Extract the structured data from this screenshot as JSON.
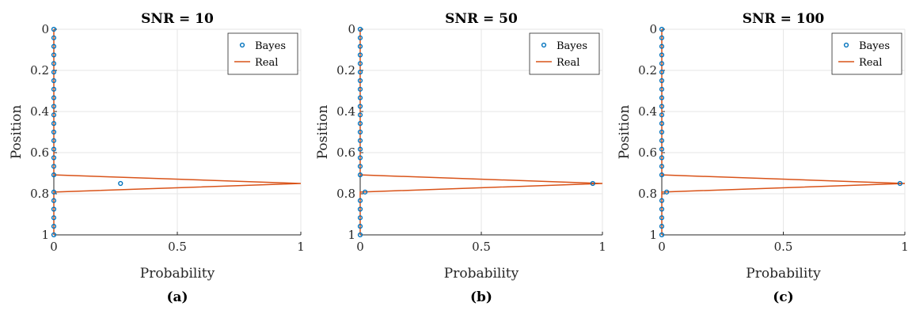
{
  "chart_data": [
    {
      "type": "line",
      "title": "SNR = 10",
      "xlabel": "Probability",
      "ylabel": "Position",
      "caption": "(a)",
      "xlim": [
        0,
        1
      ],
      "ylim": [
        0,
        1
      ],
      "y_reversed": true,
      "xticks": [
        0,
        0.5,
        1
      ],
      "xtick_labels": [
        "0",
        "0.5",
        "1"
      ],
      "yticks": [
        0,
        0.2,
        0.4,
        0.6,
        0.8,
        1
      ],
      "ytick_labels": [
        "0",
        "0.2",
        "0.4",
        "0.6",
        "0.8",
        "1"
      ],
      "grid": true,
      "legend": "top-right",
      "position_grid": [
        0,
        0.0417,
        0.0833,
        0.125,
        0.1667,
        0.2083,
        0.25,
        0.2917,
        0.3333,
        0.375,
        0.4167,
        0.4583,
        0.5,
        0.5417,
        0.5833,
        0.625,
        0.6667,
        0.7083,
        0.75,
        0.7917,
        0.8333,
        0.875,
        0.9167,
        0.9583,
        1
      ],
      "series": [
        {
          "name": "Bayes",
          "style": "markers",
          "color": "#0072BD",
          "values": [
            0,
            0,
            0,
            0,
            0,
            0,
            0,
            0,
            0,
            0,
            0,
            0,
            0,
            0,
            0,
            0,
            0,
            0,
            0.27,
            0,
            0,
            0,
            0,
            0,
            0
          ]
        },
        {
          "name": "Real",
          "style": "line",
          "color": "#D95319",
          "values": [
            0,
            0,
            0,
            0,
            0,
            0,
            0,
            0,
            0,
            0,
            0,
            0,
            0,
            0,
            0,
            0,
            0,
            0,
            1,
            0,
            0,
            0,
            0,
            0,
            0
          ]
        }
      ]
    },
    {
      "type": "line",
      "title": "SNR = 50",
      "xlabel": "Probability",
      "ylabel": "Position",
      "caption": "(b)",
      "xlim": [
        0,
        1
      ],
      "ylim": [
        0,
        1
      ],
      "y_reversed": true,
      "xticks": [
        0,
        0.5,
        1
      ],
      "xtick_labels": [
        "0",
        "0.5",
        "1"
      ],
      "yticks": [
        0,
        0.2,
        0.4,
        0.6,
        0.8,
        1
      ],
      "ytick_labels": [
        "0",
        "0.2",
        "0.4",
        "0.6",
        "0.8",
        "1"
      ],
      "grid": true,
      "legend": "top-right",
      "position_grid": [
        0,
        0.0417,
        0.0833,
        0.125,
        0.1667,
        0.2083,
        0.25,
        0.2917,
        0.3333,
        0.375,
        0.4167,
        0.4583,
        0.5,
        0.5417,
        0.5833,
        0.625,
        0.6667,
        0.7083,
        0.75,
        0.7917,
        0.8333,
        0.875,
        0.9167,
        0.9583,
        1
      ],
      "series": [
        {
          "name": "Bayes",
          "style": "markers",
          "color": "#0072BD",
          "values": [
            0,
            0,
            0,
            0,
            0,
            0,
            0,
            0,
            0,
            0,
            0,
            0,
            0,
            0,
            0,
            0,
            0,
            0,
            0.96,
            0.02,
            0,
            0,
            0,
            0,
            0
          ]
        },
        {
          "name": "Real",
          "style": "line",
          "color": "#D95319",
          "values": [
            0,
            0,
            0,
            0,
            0,
            0,
            0,
            0,
            0,
            0,
            0,
            0,
            0,
            0,
            0,
            0,
            0,
            0,
            1,
            0,
            0,
            0,
            0,
            0,
            0
          ]
        }
      ]
    },
    {
      "type": "line",
      "title": "SNR = 100",
      "xlabel": "Probability",
      "ylabel": "Position",
      "caption": "(c)",
      "xlim": [
        0,
        1
      ],
      "ylim": [
        0,
        1
      ],
      "y_reversed": true,
      "xticks": [
        0,
        0.5,
        1
      ],
      "xtick_labels": [
        "0",
        "0.5",
        "1"
      ],
      "yticks": [
        0,
        0.2,
        0.4,
        0.6,
        0.8,
        1
      ],
      "ytick_labels": [
        "0",
        "0.2",
        "0.4",
        "0.6",
        "0.8",
        "1"
      ],
      "grid": true,
      "legend": "top-right",
      "position_grid": [
        0,
        0.0417,
        0.0833,
        0.125,
        0.1667,
        0.2083,
        0.25,
        0.2917,
        0.3333,
        0.375,
        0.4167,
        0.4583,
        0.5,
        0.5417,
        0.5833,
        0.625,
        0.6667,
        0.7083,
        0.75,
        0.7917,
        0.8333,
        0.875,
        0.9167,
        0.9583,
        1
      ],
      "series": [
        {
          "name": "Bayes",
          "style": "markers",
          "color": "#0072BD",
          "values": [
            0,
            0,
            0,
            0,
            0,
            0,
            0,
            0,
            0,
            0,
            0,
            0,
            0,
            0,
            0,
            0,
            0,
            0,
            0.98,
            0.02,
            0,
            0,
            0,
            0,
            0
          ]
        },
        {
          "name": "Real",
          "style": "line",
          "color": "#D95319",
          "values": [
            0,
            0,
            0,
            0,
            0,
            0,
            0,
            0,
            0,
            0,
            0,
            0,
            0,
            0,
            0,
            0,
            0,
            0,
            1,
            0,
            0,
            0,
            0,
            0,
            0
          ]
        }
      ]
    }
  ]
}
